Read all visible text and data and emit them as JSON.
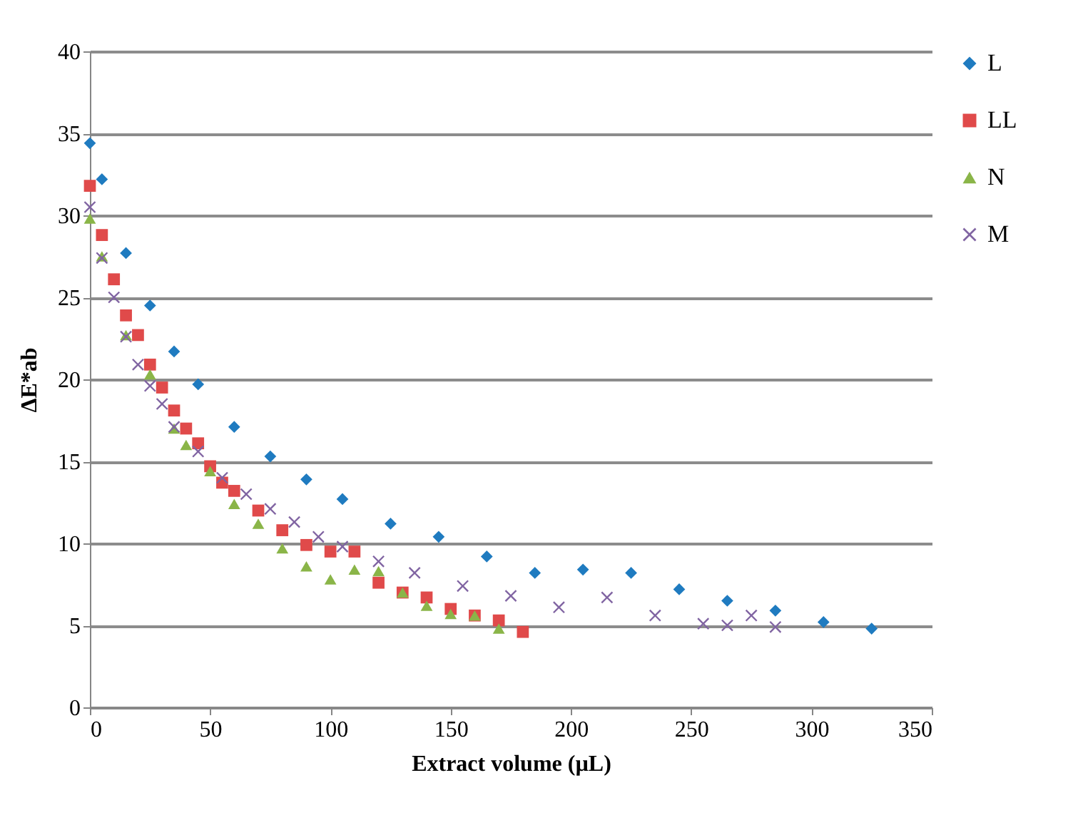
{
  "chart_data": {
    "type": "scatter",
    "xlabel": "Extract volume (µL)",
    "ylabel": "ΔE*ab",
    "xlim": [
      0,
      350
    ],
    "xticks": [
      0,
      50,
      100,
      150,
      200,
      250,
      300,
      350
    ],
    "ylim": [
      0,
      40
    ],
    "yticks": [
      0,
      5,
      10,
      15,
      20,
      25,
      30,
      35,
      40
    ],
    "grid": "y",
    "legend": "right",
    "series": [
      {
        "name": "L",
        "color": "#1f7bc0",
        "marker": "diamond",
        "x": [
          0,
          5,
          15,
          25,
          35,
          45,
          60,
          75,
          90,
          105,
          125,
          145,
          165,
          185,
          205,
          225,
          245,
          265,
          285,
          305,
          325
        ],
        "values": [
          34.4,
          32.2,
          27.7,
          24.5,
          21.7,
          19.7,
          17.1,
          15.3,
          13.9,
          12.7,
          11.2,
          10.4,
          9.2,
          8.2,
          8.4,
          8.2,
          7.2,
          6.5,
          5.9,
          5.2,
          4.8
        ]
      },
      {
        "name": "LL",
        "color": "#e04a4a",
        "marker": "square",
        "x": [
          0,
          5,
          10,
          15,
          20,
          25,
          30,
          35,
          40,
          45,
          50,
          55,
          60,
          70,
          80,
          90,
          100,
          110,
          120,
          130,
          140,
          150,
          160,
          170,
          180
        ],
        "values": [
          31.8,
          28.8,
          26.1,
          23.9,
          22.7,
          20.9,
          19.5,
          18.1,
          17.0,
          16.1,
          14.7,
          13.7,
          13.2,
          12.0,
          10.8,
          9.9,
          9.5,
          9.5,
          7.6,
          7.0,
          6.7,
          6.0,
          5.6,
          5.3,
          4.6
        ]
      },
      {
        "name": "N",
        "color": "#8ab548",
        "marker": "triangle",
        "x": [
          0,
          5,
          15,
          25,
          35,
          40,
          50,
          60,
          70,
          80,
          90,
          100,
          110,
          120,
          130,
          140,
          150,
          160,
          170
        ],
        "values": [
          29.8,
          27.5,
          22.7,
          20.3,
          17.0,
          16.0,
          14.4,
          12.4,
          11.2,
          9.7,
          8.6,
          7.8,
          8.4,
          8.3,
          7.0,
          6.2,
          5.7,
          5.6,
          4.8
        ]
      },
      {
        "name": "M",
        "color": "#8064a2",
        "marker": "cross",
        "x": [
          0,
          5,
          10,
          15,
          20,
          25,
          30,
          35,
          45,
          55,
          65,
          75,
          85,
          95,
          105,
          120,
          135,
          155,
          175,
          195,
          215,
          235,
          255,
          265,
          275,
          285
        ],
        "values": [
          30.5,
          27.4,
          25.0,
          22.6,
          20.9,
          19.6,
          18.5,
          17.1,
          15.6,
          14.0,
          13.0,
          12.1,
          11.3,
          10.4,
          9.8,
          8.9,
          8.2,
          7.4,
          6.8,
          6.1,
          6.7,
          5.6,
          5.1,
          5.0,
          5.6,
          4.9
        ]
      }
    ]
  }
}
